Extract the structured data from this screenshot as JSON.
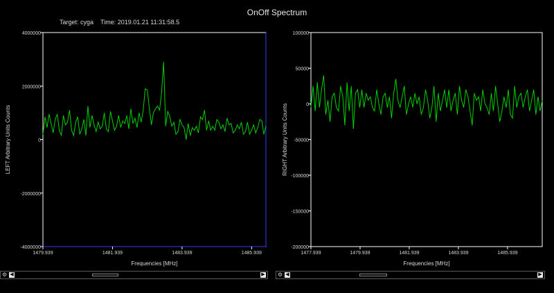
{
  "window": {
    "title": "OnOff Spectrum",
    "target_label": "Target: cyga",
    "time_label": "Time: 2019.01.21 11:31:58.5"
  },
  "colors": {
    "trace": "#00d400",
    "axis": "#ffffff",
    "left_frame_accent": "#3a3aff",
    "background": "#000000"
  },
  "chart_data": [
    {
      "type": "line",
      "name": "left-spectrum",
      "title": "",
      "xlabel": "Frequencies [MHz]",
      "ylabel": "LEFT  Arbitrary Units Counts",
      "xlim": [
        1479.939,
        1486.35
      ],
      "ylim": [
        -4000000,
        4000000
      ],
      "xticks": [
        1479.939,
        1481.939,
        1483.939,
        1485.939
      ],
      "xtick_labels": [
        "1479.939",
        "1481.939",
        "1483.939",
        "1485.939"
      ],
      "yticks": [
        4000000,
        2000000,
        0,
        -2000000,
        -4000000
      ],
      "ytick_labels": [
        "4000000",
        "2000000",
        "0",
        "-2000000",
        "-4000000"
      ],
      "grid": false,
      "series": [
        {
          "name": "LEFT",
          "values": [
            180000,
            850000,
            450000,
            950000,
            600000,
            250000,
            750000,
            950000,
            350000,
            150000,
            900000,
            550000,
            650000,
            1100000,
            350000,
            150000,
            650000,
            850000,
            200000,
            400000,
            750000,
            150000,
            1250000,
            450000,
            900000,
            550000,
            300000,
            650000,
            400000,
            500000,
            1000000,
            400000,
            300000,
            1050000,
            700000,
            350000,
            500000,
            900000,
            450000,
            700000,
            600000,
            900000,
            400000,
            1150000,
            600000,
            800000,
            450000,
            1000000,
            650000,
            1100000,
            1900000,
            1850000,
            1200000,
            550000,
            1000000,
            1150000,
            1250000,
            1100000,
            1750000,
            2900000,
            500000,
            1050000,
            850000,
            500000,
            650000,
            200000,
            300000,
            750000,
            550000,
            450000,
            0,
            600000,
            150000,
            450000,
            350000,
            500000,
            250000,
            850000,
            750000,
            1100000,
            350000,
            700000,
            350000,
            500000,
            350000,
            750000,
            650000,
            400000,
            550000,
            300000,
            800000,
            550000,
            600000,
            250000,
            350000,
            550000,
            400000,
            650000,
            200000,
            300000,
            650000,
            200000,
            350000,
            550000,
            250000,
            450000,
            750000,
            700000,
            200000,
            500000
          ]
        }
      ]
    },
    {
      "type": "line",
      "name": "right-spectrum",
      "title": "",
      "xlabel": "Frequencies [MHz]",
      "ylabel": "RIGHT  Arbitrary Units Counts",
      "xlim": [
        1477.939,
        1487.35
      ],
      "ylim": [
        -200000,
        100000
      ],
      "xticks": [
        1477.939,
        1479.939,
        1481.939,
        1483.939,
        1485.939
      ],
      "xtick_labels": [
        "1477.939",
        "1479.939",
        "1481.939",
        "1483.939",
        "1485.939"
      ],
      "yticks": [
        100000,
        50000,
        0,
        -50000,
        -100000,
        -150000,
        -200000
      ],
      "ytick_labels": [
        "100000",
        "50000",
        "0",
        "-50000",
        "-100000",
        "-150000",
        "-200000"
      ],
      "grid": false,
      "series": [
        {
          "name": "RIGHT",
          "values": [
            -5000,
            25000,
            -10000,
            30000,
            -5000,
            20000,
            40000,
            -15000,
            5000,
            -25000,
            10000,
            15000,
            -5000,
            -10000,
            25000,
            10000,
            -30000,
            30000,
            -10000,
            25000,
            -35000,
            15000,
            20000,
            -5000,
            20000,
            -5000,
            15000,
            5000,
            10000,
            -5000,
            -10000,
            20000,
            0,
            -15000,
            10000,
            15000,
            -5000,
            10000,
            -20000,
            15000,
            35000,
            5000,
            -5000,
            10000,
            25000,
            -15000,
            0,
            10000,
            -5000,
            15000,
            0,
            10000,
            -15000,
            -5000,
            20000,
            5000,
            -20000,
            -5000,
            25000,
            -25000,
            15000,
            -10000,
            5000,
            20000,
            -5000,
            20000,
            -10000,
            5000,
            15000,
            -15000,
            25000,
            5000,
            -5000,
            20000,
            10000,
            -10000,
            -30000,
            15000,
            5000,
            10000,
            -10000,
            20000,
            0,
            -5000,
            -15000,
            15000,
            -10000,
            25000,
            0,
            -25000,
            -10000,
            10000,
            -5000,
            20000,
            -15000,
            -20000,
            25000,
            -5000,
            10000,
            15000,
            -5000,
            10000,
            20000,
            -10000,
            5000,
            20000,
            -15000,
            10000,
            -10000,
            5000
          ]
        }
      ]
    }
  ]
}
